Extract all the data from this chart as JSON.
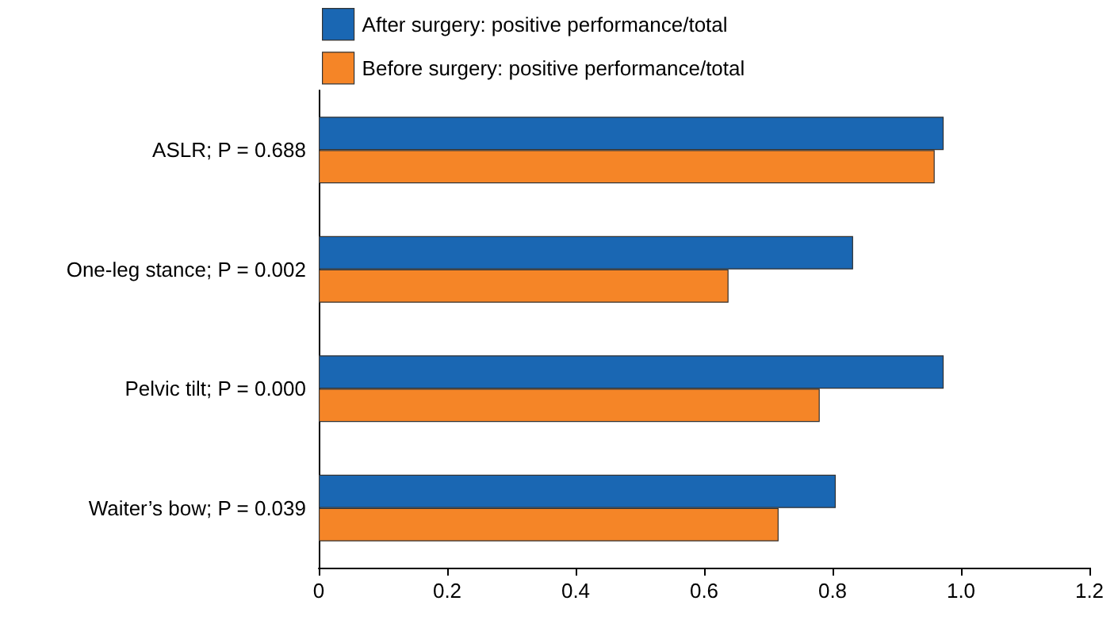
{
  "chart_data": {
    "type": "bar",
    "orientation": "horizontal",
    "categories": [
      "ASLR; P = 0.688",
      "One-leg stance; P = 0.002",
      "Pelvic tilt; P = 0.000",
      "Waiter’s bow; P = 0.039"
    ],
    "series": [
      {
        "name": "After surgery: positive performance/total",
        "color": "#1a67b3",
        "values": [
          0.973,
          0.832,
          0.973,
          0.805
        ]
      },
      {
        "name": "Before surgery: positive performance/total",
        "color": "#f58527",
        "values": [
          0.959,
          0.638,
          0.78,
          0.716
        ]
      }
    ],
    "xlim": [
      0,
      1.2
    ],
    "xticks": [
      0,
      0.2,
      0.4,
      0.6,
      0.8,
      {
        "value": 1,
        "label": "1.0"
      },
      1.2
    ],
    "grid": false,
    "legend": "top"
  }
}
